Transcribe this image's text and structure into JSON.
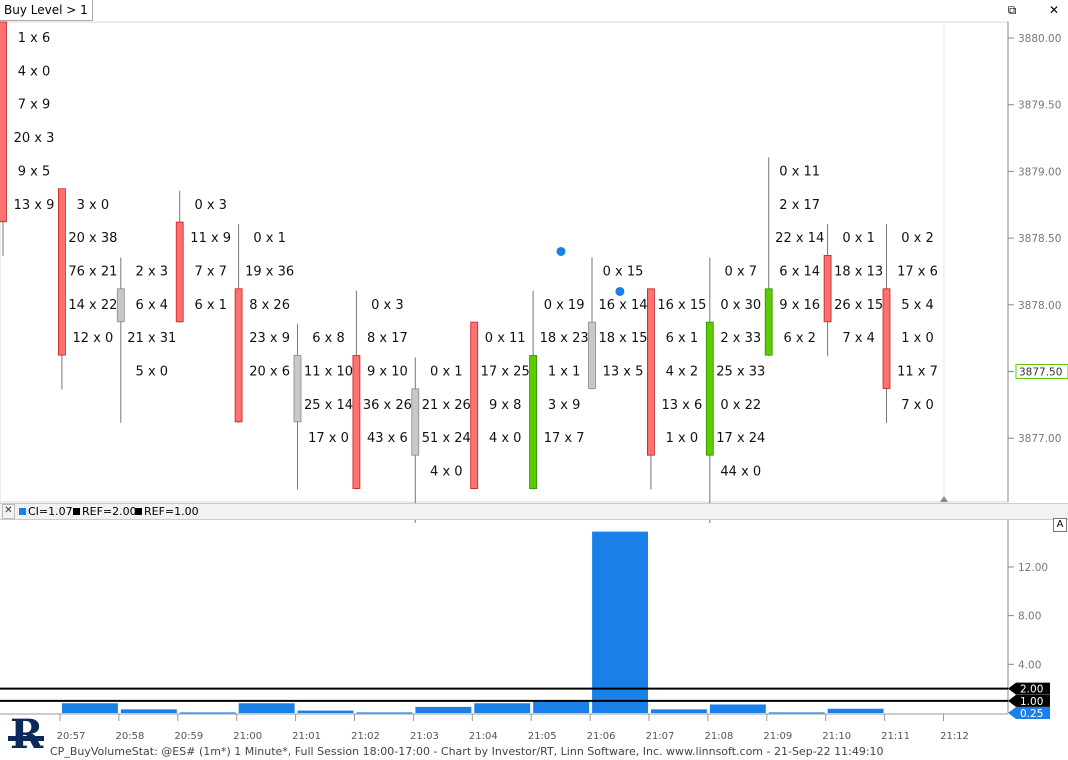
{
  "tab": {
    "label": "Buy Level > 1"
  },
  "window_buttons": [
    {
      "name": "restore-icon",
      "glyph": "⧉"
    },
    {
      "name": "close-icon",
      "glyph": "✕"
    }
  ],
  "indicator_legend": [
    {
      "label": "CI=1.07",
      "color": "#1a7fe6"
    },
    {
      "label": "REF=2.00",
      "color": "#000000"
    },
    {
      "label": "REF=1.00",
      "color": "#000000"
    }
  ],
  "autoscale_button": "A",
  "footer_text": "CP_BuyVolumeStat: @ES# (1m*) 1 Minute*, Full Session 18:00-17:00 - Chart by Investor/RT, Linn Software, Inc. www.linnsoft.com - 21-Sep-22 11:49:10",
  "chart_data": [
    {
      "type": "candlestick_footprint",
      "y_axis_labels": [
        "3880.00",
        "3879.50",
        "3879.00",
        "3878.50",
        "3878.00",
        "3877.50",
        "3877.00"
      ],
      "ylim": [
        3876.5,
        3880.1
      ],
      "last_price": "3877.50",
      "colors": {
        "down": "#ff7070",
        "up": "#5ccc00",
        "doji": "#c8c8c8",
        "dot": "#1a7fe6"
      },
      "bars": [
        {
          "time": "20:57",
          "open": 3880.0,
          "close": 3878.75,
          "high": 3880.0,
          "low": 3878.5,
          "dir": "down",
          "footprint": [
            {
              "price": 3880.0,
              "bid": 1,
              "ask": 6
            },
            {
              "price": 3879.75,
              "bid": 4,
              "ask": 0
            },
            {
              "price": 3879.5,
              "bid": 7,
              "ask": 9
            },
            {
              "price": 3879.25,
              "bid": 20,
              "ask": 3
            },
            {
              "price": 3879.0,
              "bid": 9,
              "ask": 5
            },
            {
              "price": 3878.75,
              "bid": 13,
              "ask": 9
            }
          ]
        },
        {
          "time": "20:58",
          "open": 3878.75,
          "close": 3877.75,
          "high": 3878.75,
          "low": 3877.5,
          "dir": "down",
          "footprint": [
            {
              "price": 3878.75,
              "bid": 3,
              "ask": 0
            },
            {
              "price": 3878.5,
              "bid": 20,
              "ask": 38
            },
            {
              "price": 3878.25,
              "bid": 76,
              "ask": 21
            },
            {
              "price": 3878.0,
              "bid": 14,
              "ask": 22
            },
            {
              "price": 3877.75,
              "bid": 12,
              "ask": 0
            }
          ]
        },
        {
          "time": "20:59",
          "open": 3878.0,
          "close": 3878.0,
          "high": 3878.25,
          "low": 3877.25,
          "dir": "doji",
          "footprint": [
            {
              "price": 3878.25,
              "bid": 2,
              "ask": 3
            },
            {
              "price": 3878.0,
              "bid": 6,
              "ask": 4
            },
            {
              "price": 3877.75,
              "bid": 21,
              "ask": 31
            },
            {
              "price": 3877.5,
              "bid": 5,
              "ask": 0
            }
          ]
        },
        {
          "time": "21:00",
          "open": 3878.5,
          "close": 3878.0,
          "high": 3878.75,
          "low": 3878.0,
          "dir": "down",
          "footprint": [
            {
              "price": 3878.75,
              "bid": 0,
              "ask": 3
            },
            {
              "price": 3878.5,
              "bid": 11,
              "ask": 9
            },
            {
              "price": 3878.25,
              "bid": 7,
              "ask": 7
            },
            {
              "price": 3878.0,
              "bid": 6,
              "ask": 1
            }
          ]
        },
        {
          "time": "21:01",
          "open": 3878.0,
          "close": 3877.25,
          "high": 3878.5,
          "low": 3877.25,
          "dir": "down",
          "footprint": [
            {
              "price": 3878.5,
              "bid": 0,
              "ask": 1
            },
            {
              "price": 3878.25,
              "bid": 19,
              "ask": 36
            },
            {
              "price": 3878.0,
              "bid": 8,
              "ask": 26
            },
            {
              "price": 3877.75,
              "bid": 23,
              "ask": 9
            },
            {
              "price": 3877.5,
              "bid": 20,
              "ask": 6
            }
          ]
        },
        {
          "time": "21:02",
          "open": 3877.5,
          "close": 3877.25,
          "high": 3877.75,
          "low": 3876.75,
          "dir": "doji",
          "footprint": [
            {
              "price": 3877.75,
              "bid": 6,
              "ask": 8
            },
            {
              "price": 3877.5,
              "bid": 11,
              "ask": 10
            },
            {
              "price": 3877.25,
              "bid": 25,
              "ask": 14
            },
            {
              "price": 3877.0,
              "bid": 17,
              "ask": 0
            }
          ]
        },
        {
          "time": "21:03",
          "open": 3877.5,
          "close": 3876.75,
          "high": 3878.0,
          "low": 3876.75,
          "dir": "down",
          "footprint": [
            {
              "price": 3878.0,
              "bid": 0,
              "ask": 3
            },
            {
              "price": 3877.75,
              "bid": 8,
              "ask": 17
            },
            {
              "price": 3877.5,
              "bid": 9,
              "ask": 10
            },
            {
              "price": 3877.25,
              "bid": 36,
              "ask": 26
            },
            {
              "price": 3877.0,
              "bid": 43,
              "ask": 6
            }
          ]
        },
        {
          "time": "21:04",
          "open": 3877.25,
          "close": 3877.0,
          "high": 3877.5,
          "low": 3876.5,
          "dir": "doji",
          "footprint": [
            {
              "price": 3877.5,
              "bid": 0,
              "ask": 1
            },
            {
              "price": 3877.25,
              "bid": 21,
              "ask": 26
            },
            {
              "price": 3877.0,
              "bid": 51,
              "ask": 24
            },
            {
              "price": 3876.75,
              "bid": 4,
              "ask": 0
            }
          ]
        },
        {
          "time": "21:05",
          "open": 3877.75,
          "close": 3876.75,
          "high": 3877.75,
          "low": 3876.75,
          "dir": "down",
          "footprint": [
            {
              "price": 3877.75,
              "bid": 0,
              "ask": 11
            },
            {
              "price": 3877.5,
              "bid": 17,
              "ask": 25
            },
            {
              "price": 3877.25,
              "bid": 9,
              "ask": 8
            },
            {
              "price": 3877.0,
              "bid": 4,
              "ask": 0
            }
          ]
        },
        {
          "time": "21:06",
          "open": 3876.75,
          "close": 3877.5,
          "high": 3878.0,
          "low": 3876.75,
          "dir": "up",
          "footprint": [
            {
              "price": 3878.0,
              "bid": 0,
              "ask": 19
            },
            {
              "price": 3877.75,
              "bid": 18,
              "ask": 23
            },
            {
              "price": 3877.5,
              "bid": 1,
              "ask": 1
            },
            {
              "price": 3877.25,
              "bid": 3,
              "ask": 9
            },
            {
              "price": 3877.0,
              "bid": 17,
              "ask": 7
            }
          ]
        },
        {
          "time": "21:07",
          "open": 3877.75,
          "close": 3877.5,
          "high": 3878.25,
          "low": 3877.5,
          "dir": "doji",
          "dot": 3878.4,
          "footprint": [
            {
              "price": 3878.25,
              "bid": 0,
              "ask": 15
            },
            {
              "price": 3878.0,
              "bid": 16,
              "ask": 14
            },
            {
              "price": 3877.75,
              "bid": 18,
              "ask": 15
            },
            {
              "price": 3877.5,
              "bid": 13,
              "ask": 5
            }
          ]
        },
        {
          "time": "21:08",
          "open": 3878.0,
          "close": 3877.0,
          "high": 3878.0,
          "low": 3876.75,
          "dir": "down",
          "dot": 3878.1,
          "footprint": [
            {
              "price": 3878.0,
              "bid": 16,
              "ask": 15
            },
            {
              "price": 3877.75,
              "bid": 6,
              "ask": 1
            },
            {
              "price": 3877.5,
              "bid": 4,
              "ask": 2
            },
            {
              "price": 3877.25,
              "bid": 13,
              "ask": 6
            },
            {
              "price": 3877.0,
              "bid": 1,
              "ask": 0
            }
          ]
        },
        {
          "time": "21:09",
          "open": 3877.0,
          "close": 3877.75,
          "high": 3878.25,
          "low": 3876.5,
          "dir": "up",
          "footprint": [
            {
              "price": 3878.25,
              "bid": 0,
              "ask": 7
            },
            {
              "price": 3878.0,
              "bid": 0,
              "ask": 30
            },
            {
              "price": 3877.75,
              "bid": 2,
              "ask": 33
            },
            {
              "price": 3877.5,
              "bid": 25,
              "ask": 33
            },
            {
              "price": 3877.25,
              "bid": 0,
              "ask": 22
            },
            {
              "price": 3877.0,
              "bid": 17,
              "ask": 24
            },
            {
              "price": 3876.75,
              "bid": 44,
              "ask": 0
            }
          ]
        },
        {
          "time": "21:10",
          "open": 3877.75,
          "close": 3878.0,
          "high": 3879.0,
          "low": 3877.75,
          "dir": "up",
          "footprint": [
            {
              "price": 3879.0,
              "bid": 0,
              "ask": 11
            },
            {
              "price": 3878.75,
              "bid": 2,
              "ask": 17
            },
            {
              "price": 3878.5,
              "bid": 22,
              "ask": 14
            },
            {
              "price": 3878.25,
              "bid": 6,
              "ask": 14
            },
            {
              "price": 3878.0,
              "bid": 9,
              "ask": 16
            },
            {
              "price": 3877.75,
              "bid": 6,
              "ask": 2
            }
          ]
        },
        {
          "time": "21:11",
          "open": 3878.25,
          "close": 3878.0,
          "high": 3878.5,
          "low": 3877.75,
          "dir": "down",
          "footprint": [
            {
              "price": 3878.5,
              "bid": 0,
              "ask": 1
            },
            {
              "price": 3878.25,
              "bid": 18,
              "ask": 13
            },
            {
              "price": 3878.0,
              "bid": 26,
              "ask": 15
            },
            {
              "price": 3877.75,
              "bid": 7,
              "ask": 4
            }
          ]
        },
        {
          "time": "21:12",
          "open": 3878.0,
          "close": 3877.5,
          "high": 3878.5,
          "low": 3877.25,
          "dir": "down",
          "footprint": [
            {
              "price": 3878.5,
              "bid": 0,
              "ask": 2
            },
            {
              "price": 3878.25,
              "bid": 17,
              "ask": 6
            },
            {
              "price": 3878.0,
              "bid": 5,
              "ask": 4
            },
            {
              "price": 3877.75,
              "bid": 1,
              "ask": 0
            },
            {
              "price": 3877.5,
              "bid": 11,
              "ask": 7
            },
            {
              "price": 3877.25,
              "bid": 7,
              "ask": 0
            }
          ]
        }
      ]
    },
    {
      "type": "bar",
      "series": [
        {
          "name": "CI",
          "values": [
            0.8,
            0.3,
            0.05,
            0.8,
            0.2,
            0.05,
            0.5,
            0.8,
            1.0,
            14.9,
            0.3,
            0.7,
            0.05,
            0.35
          ]
        }
      ],
      "categories": [
        "20:58",
        "20:59",
        "21:00",
        "21:01",
        "21:02",
        "21:03",
        "21:04",
        "21:05",
        "21:06",
        "21:07",
        "21:08",
        "21:09",
        "21:10",
        "21:11"
      ],
      "x_axis_labels": [
        "20:57",
        "20:58",
        "20:59",
        "21:00",
        "21:01",
        "21:02",
        "21:03",
        "21:04",
        "21:05",
        "21:06",
        "21:07",
        "21:08",
        "21:09",
        "21:10",
        "21:11",
        "21:12"
      ],
      "y_axis_labels": [
        "12.00",
        "8.00",
        "4.00"
      ],
      "ylim": [
        0,
        15.2
      ],
      "reference_lines": [
        {
          "label": "2.00",
          "value": 2.0,
          "color": "#000000"
        },
        {
          "label": "1.00",
          "value": 1.0,
          "color": "#000000"
        }
      ],
      "last_value_label": "0.25",
      "bar_color": "#1a7fe6"
    }
  ]
}
